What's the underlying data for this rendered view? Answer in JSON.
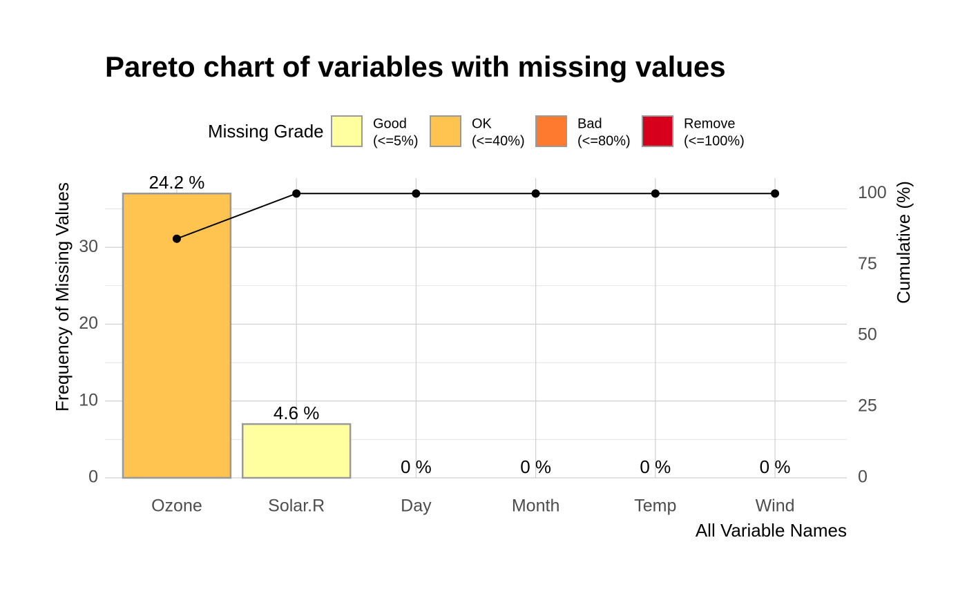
{
  "chart_data": {
    "type": "bar",
    "title": "Pareto chart of variables with missing values",
    "categories": [
      "Ozone",
      "Solar.R",
      "Day",
      "Month",
      "Temp",
      "Wind"
    ],
    "values": [
      37,
      7,
      0,
      0,
      0,
      0
    ],
    "colors": [
      "#FEC44F",
      "#FFFFA0",
      "#FFFFA0",
      "#FFFFA0",
      "#FFFFA0",
      "#FFFFA0"
    ],
    "bar_border": "#999999",
    "missing_percent": {
      "values": [
        24.2,
        4.6,
        0,
        0,
        0,
        0
      ],
      "value_labels": [
        "24.2 %",
        "4.6 %",
        "0 %",
        "0 %",
        "0 %",
        "0 %"
      ]
    },
    "cumulative": {
      "values": [
        84.1,
        100,
        100,
        100,
        100,
        100
      ],
      "axis": "y2",
      "color": "#000000"
    },
    "ylim": [
      0,
      39
    ],
    "yticks": [
      0,
      10,
      20,
      30
    ],
    "y2lim": [
      0,
      105.4
    ],
    "y2ticks": [
      0,
      25,
      50,
      75,
      100
    ],
    "ylabel": "Frequency of Missing Values",
    "y2label": "Cumulative (%)",
    "xlabel": "All Variable Names",
    "grid": true,
    "legend": {
      "position": "top",
      "title": "Missing Grade",
      "items": [
        {
          "label": [
            "Good",
            "(<=5%)"
          ],
          "color": "#FFFFA0"
        },
        {
          "label": [
            "OK",
            "(<=40%)"
          ],
          "color": "#FEC44F"
        },
        {
          "label": [
            "Bad",
            "(<=80%)"
          ],
          "color": "#FD7A2F"
        },
        {
          "label": [
            "Remove",
            "(<=100%)"
          ],
          "color": "#D7001C"
        }
      ]
    }
  }
}
